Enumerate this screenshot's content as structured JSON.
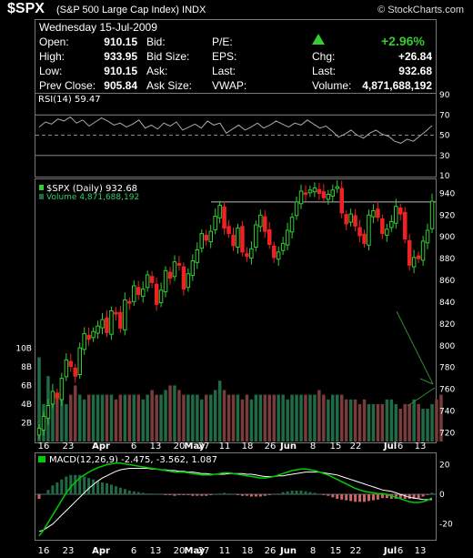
{
  "header": {
    "symbol": "$SPX",
    "name": "(S&P 500 Large Cap Index)",
    "exchange": "INDX",
    "brand": "© StockCharts.com"
  },
  "quote": {
    "date": "Wednesday  15-Jul-2009",
    "open_label": "Open:",
    "open": "910.15",
    "high_label": "High:",
    "high": "933.95",
    "low_label": "Low:",
    "low": "910.15",
    "prev_label": "Prev Close:",
    "prev": "905.84",
    "bid_label": "Bid:",
    "bidsize_label": "Bid Size:",
    "ask_label": "Ask:",
    "asksize_label": "Ask Size:",
    "pe_label": "P/E:",
    "eps_label": "EPS:",
    "last_label": "Last:",
    "vwap_label": "VWAP:",
    "pct": "+2.96%",
    "chg_label": "Chg:",
    "chg": "+26.84",
    "last": "932.68",
    "volume_label": "Volume:",
    "volume": "4,871,688,192",
    "colors": {
      "up": "#33cc33"
    }
  },
  "chart_data": [
    {
      "type": "line",
      "title": "RSI(14) 59.47",
      "ylim": [
        10,
        90
      ],
      "yticks": [
        10,
        30,
        50,
        70,
        90
      ],
      "reference_lines": [
        30,
        50,
        70
      ],
      "series": [
        {
          "name": "RSI(14)",
          "values": [
            58,
            63,
            61,
            66,
            64,
            68,
            62,
            65,
            59,
            63,
            67,
            64,
            60,
            62,
            58,
            61,
            65,
            57,
            60,
            56,
            62,
            59,
            63,
            55,
            58,
            61,
            57,
            64,
            60,
            62,
            52,
            56,
            60,
            55,
            58,
            62,
            57,
            60,
            64,
            61,
            58,
            62,
            60,
            65,
            61,
            57,
            59,
            54,
            48,
            51,
            55,
            50,
            47,
            52,
            55,
            51,
            49,
            44,
            42,
            46,
            44,
            49,
            54,
            59.47
          ]
        }
      ]
    },
    {
      "type": "candlestick",
      "title": "$SPX (Daily) 932.68",
      "volume_label": "Volume 4,871,688,192",
      "ylim": [
        712,
        952
      ],
      "yticks": [
        720,
        740,
        760,
        780,
        800,
        820,
        840,
        860,
        880,
        900,
        920,
        940
      ],
      "volume_ticks": [
        "2B",
        "4B",
        "6B",
        "8B",
        "10B"
      ],
      "volume_ylim": [
        0,
        11
      ],
      "xticks": [
        "16",
        "23",
        "Apr",
        "6",
        "13",
        "20",
        "27",
        "May",
        "11",
        "18",
        "26",
        "Jun",
        "8",
        "15",
        "22",
        "Jul",
        "6",
        "13"
      ],
      "resistance_level": 932,
      "closes": [
        724,
        735,
        745,
        758,
        752,
        770,
        787,
        781,
        772,
        798,
        811,
        806,
        813,
        818,
        824,
        812,
        832,
        829,
        816,
        842,
        839,
        855,
        847,
        852,
        865,
        858,
        838,
        851,
        869,
        862,
        877,
        874,
        852,
        866,
        878,
        888,
        903,
        897,
        905,
        919,
        929,
        908,
        903,
        892,
        908,
        886,
        882,
        889,
        911,
        920,
        905,
        893,
        881,
        886,
        894,
        906,
        918,
        932,
        942,
        939,
        943,
        945,
        940,
        936,
        939,
        943,
        946,
        922,
        912,
        921,
        910,
        901,
        894,
        920,
        924,
        918,
        903,
        907,
        914,
        928,
        921,
        898,
        874,
        881,
        880,
        896,
        906,
        932.68
      ],
      "volume": [
        9,
        4,
        7,
        4,
        5,
        5,
        4,
        5,
        6,
        5,
        4.5,
        5,
        5,
        5,
        5,
        5,
        5,
        4.5,
        5,
        5,
        5,
        5,
        5,
        4.5,
        5,
        5.5,
        5,
        5,
        5.5,
        6,
        6,
        5.5,
        5,
        5,
        5,
        5,
        4.5,
        5,
        5,
        5.5,
        6.5,
        5.5,
        5,
        5,
        5,
        4.5,
        5,
        4.5,
        5,
        5,
        5,
        5,
        5,
        5,
        5,
        4.5,
        5,
        5,
        5,
        5,
        5,
        5,
        5.5,
        5,
        4.5,
        5,
        5,
        5,
        4.5,
        4.5,
        4.5,
        4,
        4.5,
        4,
        4,
        4,
        4,
        4.5,
        4.5,
        4,
        3.5,
        4,
        4,
        4.5,
        4,
        3.5,
        3.5,
        4,
        4.5,
        5
      ]
    },
    {
      "type": "line",
      "title": "MACD(12,26,9) -2.475, -3.562, 1.087",
      "ylim": [
        -30,
        27
      ],
      "yticks": [
        -20,
        0,
        20
      ],
      "series": [
        {
          "name": "MACD(12,26,9)",
          "values": [
            -28,
            -24,
            -19,
            -14,
            -9,
            -4,
            1,
            5,
            8,
            11,
            13,
            15,
            16.5,
            18,
            19,
            20,
            20.5,
            21,
            21,
            20.5,
            20,
            19.5,
            19,
            18.5,
            18,
            17.5,
            17,
            16.5,
            16,
            15.5,
            15,
            15,
            15,
            14.5,
            14,
            13.5,
            13,
            13,
            13,
            13.5,
            14,
            14.5,
            14.5,
            14,
            13.5,
            13,
            12.5,
            12,
            11.5,
            11,
            11,
            11.5,
            12,
            13,
            14,
            15,
            16,
            16.5,
            17,
            17,
            16.5,
            16,
            15,
            14,
            13,
            11.5,
            10,
            8.5,
            7,
            5.5,
            4,
            3,
            2,
            1.5,
            1,
            0.5,
            0.5,
            0,
            -1,
            -2,
            -3,
            -4,
            -5,
            -5.5,
            -5.5,
            -5,
            -4,
            -2.475
          ]
        },
        {
          "name": "Signal",
          "values": [
            -25,
            -24,
            -22,
            -20,
            -17,
            -14,
            -11,
            -8,
            -5,
            -2,
            1,
            4,
            6.5,
            9,
            11,
            12.5,
            14,
            15.5,
            16.5,
            17,
            17.5,
            17.5,
            17.5,
            17.5,
            17.5,
            17,
            17,
            16.5,
            16.5,
            16,
            16,
            15.5,
            15.5,
            15,
            15,
            14.5,
            14,
            14,
            13.5,
            13.5,
            13.5,
            13.5,
            14,
            14,
            14,
            14,
            13.5,
            13.5,
            13,
            12.5,
            12,
            12,
            12,
            12.5,
            12.5,
            13,
            13.5,
            14,
            14.5,
            15,
            15,
            15,
            15,
            14.5,
            14,
            13.5,
            13,
            12,
            11,
            10,
            9,
            8,
            7,
            6,
            5,
            4,
            3,
            2.5,
            2,
            1,
            0,
            -1,
            -2,
            -2.5,
            -3,
            -3.5,
            -3.6,
            -3.562
          ]
        }
      ]
    }
  ],
  "colors": {
    "up": "#33cc33",
    "down": "#ee2222",
    "vol_up": "#1e6b45",
    "vol_down": "#7a3b3b",
    "rsi": "#aaaaaa",
    "macd": "#00cc00",
    "signal": "#ffffff",
    "hist": "#cc6666"
  }
}
